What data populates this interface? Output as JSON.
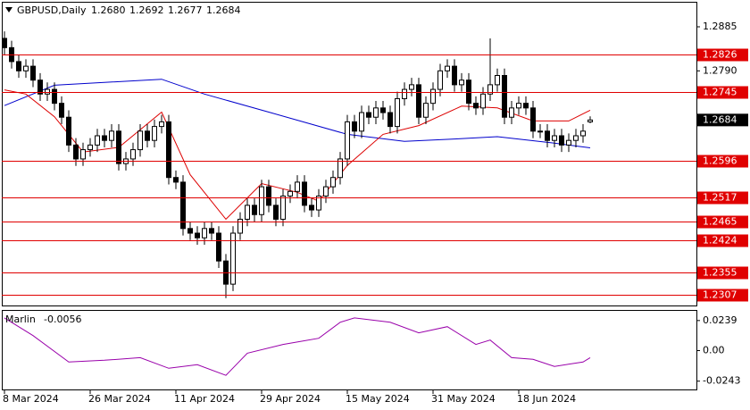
{
  "chart_data": [
    {
      "type": "candlestick",
      "header": {
        "symbol": "GBPUSD,Daily",
        "ohlc_labels": [
          "1.2680",
          "1.2692",
          "1.2677",
          "1.2684"
        ]
      },
      "xlim": [
        -0.375,
        96.875
      ],
      "xticks": [
        {
          "value": 0,
          "label": "8 Mar 2024"
        },
        {
          "value": 12,
          "label": "26 Mar 2024"
        },
        {
          "value": 24,
          "label": "11 Apr 2024"
        },
        {
          "value": 36,
          "label": "29 Apr 2024"
        },
        {
          "value": 48,
          "label": "15 May 2024"
        },
        {
          "value": 60,
          "label": "31 May 2024"
        },
        {
          "value": 72,
          "label": "18 Jun 2024"
        }
      ],
      "ylim": [
        1.2284,
        1.2937
      ],
      "yticks": [
        1.2885,
        {
          "value": 1.279,
          "label": "1.2790"
        }
      ],
      "open": [
        1.286,
        1.284,
        1.281,
        1.279,
        1.28,
        1.277,
        1.274,
        1.275,
        1.272,
        1.269,
        1.263,
        1.26,
        1.262,
        1.263,
        1.265,
        1.264,
        1.266,
        1.259,
        1.26,
        1.262,
        1.266,
        1.264,
        1.267,
        1.268,
        1.256,
        1.255,
        1.245,
        1.244,
        1.243,
        1.245,
        1.244,
        1.238,
        1.233,
        1.244,
        1.247,
        1.25,
        1.248,
        1.254,
        1.25,
        1.247,
        1.252,
        1.253,
        1.255,
        1.25,
        1.249,
        1.252,
        1.254,
        1.256,
        1.26,
        1.268,
        1.266,
        1.27,
        1.269,
        1.271,
        1.27,
        1.267,
        1.273,
        1.275,
        1.276,
        1.269,
        1.272,
        1.275,
        1.279,
        1.28,
        1.276,
        1.277,
        1.272,
        1.271,
        1.274,
        1.276,
        1.278,
        1.269,
        1.271,
        1.272,
        1.271,
        1.266,
        1.266,
        1.264,
        1.265,
        1.263,
        1.264,
        1.265,
        1.268
      ],
      "high": [
        1.2875,
        1.2855,
        1.2825,
        1.2815,
        1.2815,
        1.2785,
        1.2765,
        1.2765,
        1.2735,
        1.2705,
        1.2645,
        1.2635,
        1.2645,
        1.2665,
        1.2665,
        1.2675,
        1.2675,
        1.2615,
        1.2635,
        1.2675,
        1.2675,
        1.2685,
        1.2695,
        1.2695,
        1.2575,
        1.2565,
        1.2465,
        1.2455,
        1.2465,
        1.2465,
        1.2455,
        1.2395,
        1.2455,
        1.2485,
        1.2515,
        1.2515,
        1.2555,
        1.2555,
        1.2515,
        1.2535,
        1.2545,
        1.2565,
        1.2565,
        1.2515,
        1.2535,
        1.2555,
        1.2575,
        1.2615,
        1.2695,
        1.2695,
        1.2715,
        1.2715,
        1.2725,
        1.2725,
        1.2715,
        1.2745,
        1.2765,
        1.2775,
        1.2775,
        1.2735,
        1.2765,
        1.2805,
        1.2815,
        1.2815,
        1.2785,
        1.2785,
        1.2735,
        1.2755,
        1.286,
        1.2795,
        1.2795,
        1.2725,
        1.2735,
        1.2735,
        1.2725,
        1.2675,
        1.2675,
        1.2665,
        1.2665,
        1.2655,
        1.2665,
        1.2675,
        1.2692
      ],
      "low": [
        1.2825,
        1.2795,
        1.2775,
        1.2775,
        1.2755,
        1.2725,
        1.2725,
        1.2705,
        1.2675,
        1.2615,
        1.2585,
        1.2585,
        1.2605,
        1.2615,
        1.2625,
        1.2625,
        1.2575,
        1.2575,
        1.2585,
        1.2605,
        1.2625,
        1.2625,
        1.2655,
        1.2545,
        1.2535,
        1.2435,
        1.2425,
        1.2415,
        1.2415,
        1.2425,
        1.2365,
        1.23,
        1.2315,
        1.2425,
        1.2455,
        1.2465,
        1.2465,
        1.2485,
        1.2455,
        1.2455,
        1.2505,
        1.2515,
        1.2485,
        1.2475,
        1.2475,
        1.2505,
        1.2525,
        1.2545,
        1.2585,
        1.2645,
        1.2645,
        1.2675,
        1.2675,
        1.2685,
        1.2655,
        1.2655,
        1.2715,
        1.2735,
        1.2675,
        1.2675,
        1.2705,
        1.2735,
        1.2775,
        1.2745,
        1.2745,
        1.2705,
        1.2695,
        1.2695,
        1.2725,
        1.2745,
        1.2675,
        1.2675,
        1.2695,
        1.2695,
        1.2645,
        1.2645,
        1.2625,
        1.2625,
        1.2615,
        1.2615,
        1.2625,
        1.2635,
        1.2677
      ],
      "close": [
        1.284,
        1.281,
        1.279,
        1.28,
        1.277,
        1.274,
        1.275,
        1.272,
        1.269,
        1.263,
        1.26,
        1.262,
        1.263,
        1.265,
        1.264,
        1.266,
        1.259,
        1.26,
        1.262,
        1.266,
        1.264,
        1.267,
        1.268,
        1.256,
        1.255,
        1.245,
        1.244,
        1.243,
        1.245,
        1.244,
        1.238,
        1.233,
        1.244,
        1.247,
        1.25,
        1.248,
        1.254,
        1.25,
        1.247,
        1.252,
        1.253,
        1.255,
        1.25,
        1.249,
        1.252,
        1.254,
        1.256,
        1.26,
        1.268,
        1.266,
        1.27,
        1.269,
        1.271,
        1.27,
        1.267,
        1.273,
        1.275,
        1.276,
        1.269,
        1.272,
        1.275,
        1.279,
        1.28,
        1.276,
        1.277,
        1.272,
        1.271,
        1.274,
        1.276,
        1.278,
        1.269,
        1.271,
        1.272,
        1.271,
        1.266,
        1.266,
        1.264,
        1.265,
        1.263,
        1.264,
        1.265,
        1.266,
        1.2684
      ],
      "up_color": "#ffffff",
      "down_color": "#000000",
      "series": [
        {
          "color": "#0000cc",
          "x": [
            0,
            7,
            22,
            28,
            37,
            48,
            56,
            63,
            69,
            77,
            82
          ],
          "values": [
            1.2715,
            1.2759,
            1.2772,
            1.274,
            1.2701,
            1.2653,
            1.2638,
            1.2643,
            1.2648,
            1.2634,
            1.2624
          ]
        },
        {
          "color": "#dd0000",
          "x": [
            0,
            3,
            7,
            11,
            16,
            22,
            26,
            31,
            36,
            41,
            44,
            48,
            53,
            58,
            64,
            69,
            74,
            79,
            82
          ],
          "values": [
            1.2749,
            1.274,
            1.2691,
            1.2615,
            1.2625,
            1.2701,
            1.2566,
            1.247,
            1.2547,
            1.2528,
            1.2509,
            1.2586,
            1.2653,
            1.2672,
            1.2714,
            1.271,
            1.2682,
            1.2682,
            1.2705
          ]
        }
      ],
      "levels": [
        1.2826,
        1.2745,
        1.2596,
        1.2517,
        1.2465,
        1.2424,
        1.2355,
        1.2307
      ],
      "level_color": "#e00000",
      "current_price": 1.2684
    },
    {
      "type": "line",
      "name": "Marlin",
      "xlim": [
        -0.375,
        96.875
      ],
      "ylim": [
        -0.0309,
        0.0316
      ],
      "yticks": [
        0.0239,
        {
          "value": 0,
          "label": "0.00"
        },
        -0.0243
      ],
      "color": "#9900aa",
      "x": [
        0,
        4,
        9,
        14,
        19,
        23,
        27,
        31,
        34,
        39,
        44,
        47,
        49,
        54,
        58,
        62,
        66,
        68,
        71,
        74,
        77,
        81,
        82
      ],
      "values": [
        0.026,
        0.0119,
        -0.0091,
        -0.0077,
        -0.0056,
        -0.0141,
        -0.0112,
        -0.0197,
        -0.0021,
        0.0049,
        0.0098,
        0.0225,
        0.026,
        0.0225,
        0.0141,
        0.019,
        0.0049,
        0.0084,
        -0.0056,
        -0.007,
        -0.0126,
        -0.0091,
        -0.0056
      ]
    }
  ]
}
